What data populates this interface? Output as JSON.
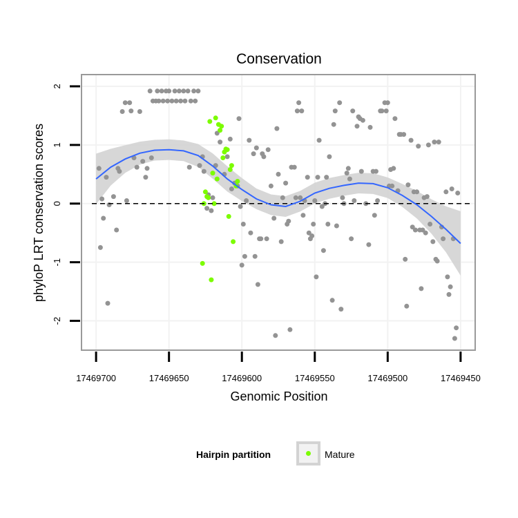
{
  "chart_data": {
    "type": "scatter",
    "title": "Conservation",
    "xlabel": "Genomic Position",
    "ylabel": "phyloP LRT conservation scores",
    "xlim": [
      17469710,
      17469440
    ],
    "ylim": [
      -2.5,
      2.2
    ],
    "x_ticks": [
      17469700,
      17469650,
      17469600,
      17469550,
      17469500,
      17469450
    ],
    "x_tick_labels": [
      "17469700",
      "17469650",
      "17469600",
      "17469550",
      "17469500",
      "17469450"
    ],
    "y_ticks": [
      -2,
      -1,
      0,
      1,
      2
    ],
    "y_tick_labels": [
      "-2",
      "-1",
      "0",
      "1",
      "2"
    ],
    "reference_line": 0,
    "legend": {
      "title": "Hairpin partition",
      "entries": [
        {
          "label": "Mature",
          "color": "#7cfc00"
        }
      ]
    },
    "colors": {
      "background": "#ffffff",
      "panel_border": "#999999",
      "grid": "#f2f2f2",
      "points_other": "#939393",
      "points_mature": "#7cfc00",
      "smooth_line": "#3366ff",
      "ribbon": "#d3d3d3"
    },
    "series": [
      {
        "name": "Other",
        "points": [
          [
            17469698,
            0.6
          ],
          [
            17469697,
            -0.75
          ],
          [
            17469696,
            0.08
          ],
          [
            17469695,
            -0.25
          ],
          [
            17469693,
            0.45
          ],
          [
            17469692,
            -1.7
          ],
          [
            17469691,
            -0.02
          ],
          [
            17469688,
            0.12
          ],
          [
            17469686,
            -0.45
          ],
          [
            17469685,
            0.6
          ],
          [
            17469684,
            0.55
          ],
          [
            17469682,
            1.57
          ],
          [
            17469680,
            1.72
          ],
          [
            17469679,
            0.05
          ],
          [
            17469677,
            1.72
          ],
          [
            17469676,
            1.58
          ],
          [
            17469674,
            0.78
          ],
          [
            17469672,
            0.62
          ],
          [
            17469670,
            1.57
          ],
          [
            17469668,
            0.72
          ],
          [
            17469666,
            0.45
          ],
          [
            17469665,
            0.6
          ],
          [
            17469663,
            1.92
          ],
          [
            17469662,
            0.78
          ],
          [
            17469661,
            1.75
          ],
          [
            17469659,
            1.75
          ],
          [
            17469658,
            1.92
          ],
          [
            17469657,
            1.75
          ],
          [
            17469655,
            1.92
          ],
          [
            17469654,
            1.75
          ],
          [
            17469652,
            1.92
          ],
          [
            17469651,
            1.75
          ],
          [
            17469650,
            1.92
          ],
          [
            17469648,
            1.75
          ],
          [
            17469646,
            1.92
          ],
          [
            17469645,
            1.75
          ],
          [
            17469643,
            1.92
          ],
          [
            17469642,
            1.75
          ],
          [
            17469640,
            1.92
          ],
          [
            17469639,
            1.75
          ],
          [
            17469637,
            1.92
          ],
          [
            17469636,
            0.62
          ],
          [
            17469635,
            1.75
          ],
          [
            17469633,
            1.92
          ],
          [
            17469632,
            1.75
          ],
          [
            17469630,
            1.92
          ],
          [
            17469629,
            0.65
          ],
          [
            17469627,
            0.8
          ],
          [
            17469626,
            0.55
          ],
          [
            17469624,
            -0.08
          ],
          [
            17469623,
            0.15
          ],
          [
            17469621,
            -0.12
          ],
          [
            17469620,
            0.1
          ],
          [
            17469618,
            0.65
          ],
          [
            17469617,
            1.2
          ],
          [
            17469615,
            1.05
          ],
          [
            17469612,
            0.5
          ],
          [
            17469610,
            0.8
          ],
          [
            17469608,
            1.1
          ],
          [
            17469607,
            0.25
          ],
          [
            17469605,
            0.35
          ],
          [
            17469603,
            0.3
          ],
          [
            17469602,
            1.45
          ],
          [
            17469601,
            -0.05
          ],
          [
            17469600,
            -1.05
          ],
          [
            17469599,
            -0.35
          ],
          [
            17469598,
            -0.9
          ],
          [
            17469597,
            0.05
          ],
          [
            17469595,
            1.08
          ],
          [
            17469594,
            -0.5
          ],
          [
            17469592,
            0.85
          ],
          [
            17469591,
            -0.9
          ],
          [
            17469590,
            0.95
          ],
          [
            17469589,
            -1.38
          ],
          [
            17469588,
            -0.6
          ],
          [
            17469587,
            -0.6
          ],
          [
            17469586,
            0.85
          ],
          [
            17469585,
            0.8
          ],
          [
            17469583,
            -0.6
          ],
          [
            17469582,
            0.92
          ],
          [
            17469580,
            0.3
          ],
          [
            17469578,
            -0.25
          ],
          [
            17469577,
            -2.25
          ],
          [
            17469576,
            1.28
          ],
          [
            17469575,
            0.5
          ],
          [
            17469573,
            -0.65
          ],
          [
            17469572,
            0.1
          ],
          [
            17469570,
            0.35
          ],
          [
            17469569,
            -0.35
          ],
          [
            17469568,
            -0.3
          ],
          [
            17469567,
            -2.15
          ],
          [
            17469566,
            0.62
          ],
          [
            17469564,
            0.62
          ],
          [
            17469563,
            0.1
          ],
          [
            17469562,
            1.58
          ],
          [
            17469561,
            1.72
          ],
          [
            17469560,
            0.1
          ],
          [
            17469559,
            1.58
          ],
          [
            17469558,
            -0.2
          ],
          [
            17469557,
            0.05
          ],
          [
            17469555,
            0.45
          ],
          [
            17469554,
            -0.5
          ],
          [
            17469553,
            -0.6
          ],
          [
            17469552,
            -0.55
          ],
          [
            17469551,
            -0.35
          ],
          [
            17469550,
            0.05
          ],
          [
            17469549,
            -1.25
          ],
          [
            17469548,
            0.45
          ],
          [
            17469547,
            1.08
          ],
          [
            17469545,
            -0.05
          ],
          [
            17469544,
            -0.8
          ],
          [
            17469543,
            0.0
          ],
          [
            17469542,
            0.45
          ],
          [
            17469541,
            -0.35
          ],
          [
            17469540,
            0.8
          ],
          [
            17469538,
            -1.65
          ],
          [
            17469537,
            1.35
          ],
          [
            17469536,
            1.58
          ],
          [
            17469535,
            -0.38
          ],
          [
            17469533,
            1.72
          ],
          [
            17469532,
            -1.8
          ],
          [
            17469531,
            0.1
          ],
          [
            17469530,
            0.0
          ],
          [
            17469528,
            0.52
          ],
          [
            17469527,
            0.6
          ],
          [
            17469526,
            0.42
          ],
          [
            17469525,
            -0.6
          ],
          [
            17469524,
            1.58
          ],
          [
            17469523,
            0.05
          ],
          [
            17469521,
            1.32
          ],
          [
            17469520,
            1.48
          ],
          [
            17469519,
            1.45
          ],
          [
            17469518,
            0.55
          ],
          [
            17469517,
            1.42
          ],
          [
            17469515,
            0.0
          ],
          [
            17469513,
            -0.7
          ],
          [
            17469512,
            1.3
          ],
          [
            17469510,
            0.55
          ],
          [
            17469509,
            -0.2
          ],
          [
            17469508,
            0.55
          ],
          [
            17469507,
            0.05
          ],
          [
            17469505,
            1.58
          ],
          [
            17469504,
            1.58
          ],
          [
            17469502,
            1.72
          ],
          [
            17469501,
            1.58
          ],
          [
            17469500,
            1.72
          ],
          [
            17469499,
            0.3
          ],
          [
            17469498,
            0.58
          ],
          [
            17469497,
            0.3
          ],
          [
            17469496,
            0.6
          ],
          [
            17469495,
            1.45
          ],
          [
            17469493,
            0.22
          ],
          [
            17469492,
            1.18
          ],
          [
            17469491,
            1.18
          ],
          [
            17469489,
            1.18
          ],
          [
            17469488,
            -0.95
          ],
          [
            17469487,
            -1.75
          ],
          [
            17469486,
            0.32
          ],
          [
            17469484,
            1.08
          ],
          [
            17469483,
            -0.4
          ],
          [
            17469482,
            0.2
          ],
          [
            17469481,
            -0.45
          ],
          [
            17469480,
            0.2
          ],
          [
            17469479,
            0.98
          ],
          [
            17469478,
            -0.45
          ],
          [
            17469477,
            -1.45
          ],
          [
            17469476,
            -0.45
          ],
          [
            17469475,
            0.1
          ],
          [
            17469474,
            -0.5
          ],
          [
            17469473,
            0.12
          ],
          [
            17469472,
            1.0
          ],
          [
            17469471,
            -0.35
          ],
          [
            17469469,
            -0.65
          ],
          [
            17469468,
            1.05
          ],
          [
            17469467,
            -0.95
          ],
          [
            17469466,
            -0.98
          ],
          [
            17469465,
            1.05
          ],
          [
            17469463,
            -0.4
          ],
          [
            17469462,
            -0.6
          ],
          [
            17469460,
            0.2
          ],
          [
            17469459,
            -1.25
          ],
          [
            17469458,
            -1.55
          ],
          [
            17469457,
            -1.42
          ],
          [
            17469456,
            0.25
          ],
          [
            17469455,
            -0.6
          ],
          [
            17469454,
            -2.3
          ],
          [
            17469453,
            -2.12
          ],
          [
            17469452,
            0.18
          ]
        ]
      },
      {
        "name": "Mature",
        "points": [
          [
            17469627,
            -1.02
          ],
          [
            17469626,
            0.0
          ],
          [
            17469625,
            0.2
          ],
          [
            17469624,
            0.12
          ],
          [
            17469623,
            0.1
          ],
          [
            17469622,
            1.4
          ],
          [
            17469621,
            -1.3
          ],
          [
            17469620,
            0.52
          ],
          [
            17469619,
            0.0
          ],
          [
            17469618,
            1.46
          ],
          [
            17469617,
            0.42
          ],
          [
            17469616,
            1.35
          ],
          [
            17469615,
            1.25
          ],
          [
            17469614,
            1.32
          ],
          [
            17469613,
            0.78
          ],
          [
            17469612,
            0.88
          ],
          [
            17469611,
            0.93
          ],
          [
            17469610,
            0.92
          ],
          [
            17469609,
            -0.22
          ],
          [
            17469608,
            0.58
          ],
          [
            17469607,
            0.65
          ],
          [
            17469606,
            -0.65
          ],
          [
            17469604,
            0.3
          ],
          [
            17469603,
            0.38
          ]
        ]
      }
    ],
    "smooth": {
      "x": [
        17469700,
        17469690,
        17469680,
        17469670,
        17469660,
        17469650,
        17469640,
        17469630,
        17469620,
        17469610,
        17469600,
        17469590,
        17469580,
        17469570,
        17469560,
        17469550,
        17469540,
        17469530,
        17469520,
        17469510,
        17469500,
        17469490,
        17469480,
        17469470,
        17469460,
        17469450
      ],
      "y": [
        0.42,
        0.62,
        0.76,
        0.86,
        0.91,
        0.92,
        0.9,
        0.82,
        0.64,
        0.42,
        0.24,
        0.08,
        -0.02,
        -0.05,
        0.04,
        0.18,
        0.26,
        0.31,
        0.35,
        0.34,
        0.27,
        0.14,
        -0.02,
        -0.22,
        -0.44,
        -0.68
      ],
      "se": [
        0.22,
        0.16,
        0.12,
        0.1,
        0.09,
        0.09,
        0.09,
        0.1,
        0.11,
        0.11,
        0.1,
        0.09,
        0.09,
        0.09,
        0.09,
        0.09,
        0.09,
        0.09,
        0.09,
        0.09,
        0.09,
        0.1,
        0.12,
        0.15,
        0.2,
        0.28
      ]
    }
  }
}
